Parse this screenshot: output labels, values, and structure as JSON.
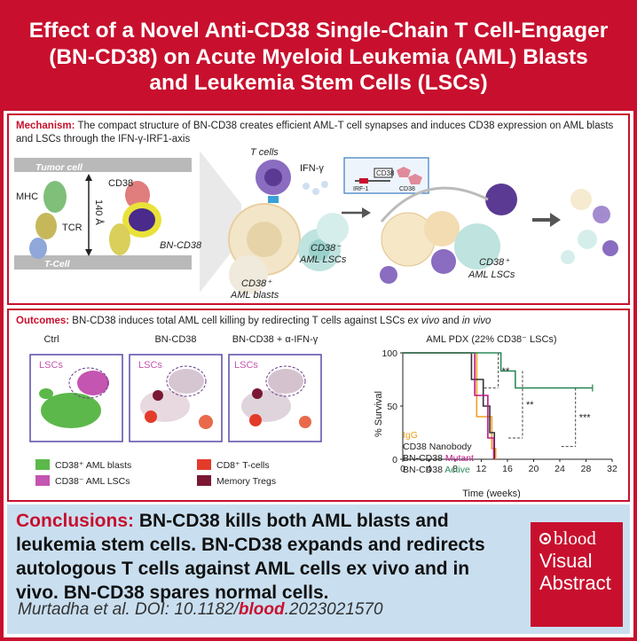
{
  "title": {
    "line1": "Effect of a Novel Anti-CD38 Single-Chain T Cell-Engager",
    "line2": "(BN-CD38) on Acute Myeloid Leukemia (AML) Blasts",
    "line3": "and Leukemia Stem Cells (LSCs)"
  },
  "mechanism": {
    "lead": "Mechanism:",
    "text": "The compact structure of BN-CD38 creates efficient AML-T cell synapses and induces CD38 expression on AML blasts and LSCs through the IFN-γ-IRF1-axis",
    "labels": {
      "tumor_cell": "Tumor cell",
      "t_cell": "T-Cell",
      "mhc": "MHC",
      "tcr": "TCR",
      "cd38": "CD38",
      "distance": "140 Å",
      "bn_cd38": "BN-CD38",
      "t_cells": "T cells",
      "ifn": "IFN-γ",
      "cd38_pos_blasts_1": "CD38⁺",
      "cd38_pos_blasts_2": "AML blasts",
      "cd38_neg_lscs_1": "CD38⁻",
      "cd38_neg_lscs_2": "AML LSCs",
      "cd38_pos_lscs_1": "CD38⁺",
      "cd38_pos_lscs_2": "AML LSCs",
      "gene_box": "CD38",
      "irf1": "IRF-1",
      "cd38_protein": "CD38"
    }
  },
  "outcomes": {
    "lead": "Outcomes:",
    "text_before": "BN-CD38 induces total AML cell killing by redirecting T cells against LSCs ",
    "text_exvivo": "ex vivo",
    "text_and": " and ",
    "text_invivo": "in vivo",
    "panels": [
      {
        "title": "Ctrl",
        "tag": "LSCs"
      },
      {
        "title": "BN-CD38",
        "tag": "LSCs"
      },
      {
        "title": "BN-CD38 + α-IFN-γ",
        "tag": "LSCs"
      }
    ],
    "legend": [
      {
        "label": "CD38⁺ AML blasts",
        "color": "#5cb84a"
      },
      {
        "label": "CD38⁻ AML LSCs",
        "color": "#c455b0"
      },
      {
        "label": "CD8⁺ T-cells",
        "color": "#e33b2a"
      },
      {
        "label": "Memory Tregs",
        "color": "#7a1834"
      }
    ]
  },
  "chart_data": {
    "type": "line",
    "title": "AML PDX (22% CD38⁻ LSCs)",
    "xlabel": "Time (weeks)",
    "ylabel": "% Survival",
    "xlim": [
      0,
      32
    ],
    "ylim": [
      0,
      100
    ],
    "xticks": [
      0,
      4,
      8,
      12,
      16,
      20,
      24,
      28,
      32
    ],
    "yticks": [
      0,
      50,
      100
    ],
    "series": [
      {
        "name": "IgG",
        "color": "#f0a020",
        "x": [
          0,
          11.3,
          11.3,
          13.6,
          13.6,
          14.2,
          14.2
        ],
        "y": [
          100,
          100,
          40,
          40,
          10,
          10,
          0
        ]
      },
      {
        "name": "CD38 Nanobody",
        "color": "#333333",
        "x": [
          0,
          10.5,
          10.5,
          12.3,
          12.3,
          13.3,
          13.3,
          14.0,
          14.0
        ],
        "y": [
          100,
          100,
          75,
          75,
          50,
          50,
          25,
          25,
          0
        ]
      },
      {
        "name": "BN-CD38 Mutant",
        "color": "#c0188a",
        "x": [
          0,
          11.0,
          11.0,
          13.0,
          13.0,
          13.9,
          13.9
        ],
        "y": [
          100,
          100,
          60,
          60,
          20,
          20,
          0
        ]
      },
      {
        "name": "BN-CD38 Active",
        "color": "#2d8a5a",
        "x": [
          0,
          15.0,
          15.0,
          17.2,
          17.2,
          20.4,
          20.4,
          29.0
        ],
        "y": [
          100,
          100,
          83,
          83,
          67,
          67,
          67,
          67
        ]
      }
    ],
    "legend_labels": {
      "igg": "IgG",
      "nanobody": "CD38 Nanobody",
      "mutant_prefix": "BN-CD38 ",
      "mutant_word": "Mutant",
      "active_prefix": "BN-CD38 ",
      "active_word": "Active"
    },
    "annotations": [
      "**",
      "**",
      "***"
    ]
  },
  "conclusions": {
    "lead": "Conclusions:",
    "text": " BN-CD38 kills both AML blasts and leukemia stem cells. BN-CD38 expands and redirects autologous T cells against AML cells ex vivo and in vivo. BN-CD38 spares normal cells.",
    "citation_prefix": "Murtadha et al. DOI: 10.1182/",
    "citation_journal": "blood",
    "citation_suffix": ".2023021570"
  },
  "badge": {
    "logo": "blood",
    "line1": "Visual",
    "line2": "Abstract"
  }
}
